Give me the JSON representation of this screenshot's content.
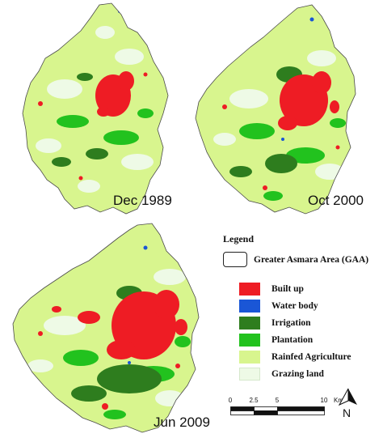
{
  "maps": [
    {
      "date": "Dec 1989"
    },
    {
      "date": "Oct 2000"
    },
    {
      "date": "Jun 2009"
    }
  ],
  "legend": {
    "title": "Legend",
    "boundary_label": "Greater Asmara Area (GAA)",
    "classes": [
      {
        "label": "Built up",
        "color": "#ee1c24"
      },
      {
        "label": "Water body",
        "color": "#1a56d6"
      },
      {
        "label": "Irrigation",
        "color": "#2e7d1e"
      },
      {
        "label": "Plantation",
        "color": "#22c21e"
      },
      {
        "label": "Rainfed Agriculture",
        "color": "#d8f58e"
      },
      {
        "label": "Grazing land",
        "color": "#eefae6"
      }
    ]
  },
  "scale_bar": {
    "ticks": [
      "0",
      "2.5",
      "5",
      "10"
    ],
    "unit": "Km"
  },
  "north_arrow": {
    "label": "N"
  }
}
